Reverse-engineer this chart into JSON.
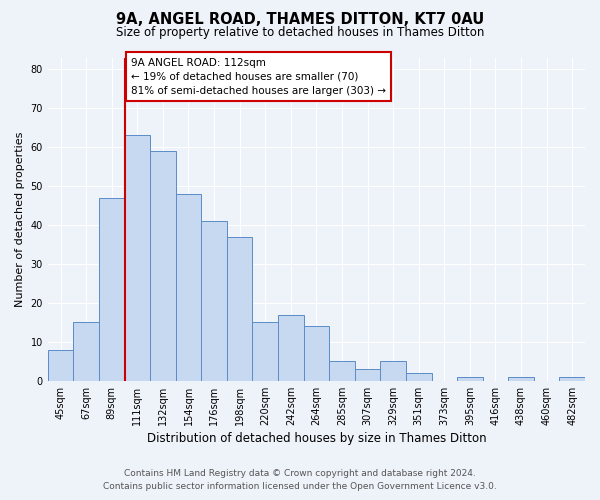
{
  "title": "9A, ANGEL ROAD, THAMES DITTON, KT7 0AU",
  "subtitle": "Size of property relative to detached houses in Thames Ditton",
  "xlabel": "Distribution of detached houses by size in Thames Ditton",
  "ylabel": "Number of detached properties",
  "bar_labels": [
    "45sqm",
    "67sqm",
    "89sqm",
    "111sqm",
    "132sqm",
    "154sqm",
    "176sqm",
    "198sqm",
    "220sqm",
    "242sqm",
    "264sqm",
    "285sqm",
    "307sqm",
    "329sqm",
    "351sqm",
    "373sqm",
    "395sqm",
    "416sqm",
    "438sqm",
    "460sqm",
    "482sqm"
  ],
  "bar_values": [
    8,
    15,
    47,
    63,
    59,
    48,
    41,
    37,
    15,
    17,
    14,
    5,
    3,
    5,
    2,
    0,
    1,
    0,
    1,
    0,
    1
  ],
  "bar_color": "#c6d9f0",
  "bar_edge_color": "#5b8cc8",
  "vline_x_index": 3,
  "vline_color": "#cc0000",
  "annotation_box_text": "9A ANGEL ROAD: 112sqm\n← 19% of detached houses are smaller (70)\n81% of semi-detached houses are larger (303) →",
  "annotation_box_edgecolor": "#cc0000",
  "annotation_box_facecolor": "#ffffff",
  "ylim": [
    0,
    83
  ],
  "yticks": [
    0,
    10,
    20,
    30,
    40,
    50,
    60,
    70,
    80
  ],
  "footer_line1": "Contains HM Land Registry data © Crown copyright and database right 2024.",
  "footer_line2": "Contains public sector information licensed under the Open Government Licence v3.0.",
  "bg_color": "#eef2f9",
  "grid_color": "#ffffff",
  "title_fontsize": 10.5,
  "subtitle_fontsize": 8.5,
  "ylabel_fontsize": 8,
  "xlabel_fontsize": 8.5,
  "tick_fontsize": 7,
  "annotation_fontsize": 7.5,
  "footer_fontsize": 6.5
}
